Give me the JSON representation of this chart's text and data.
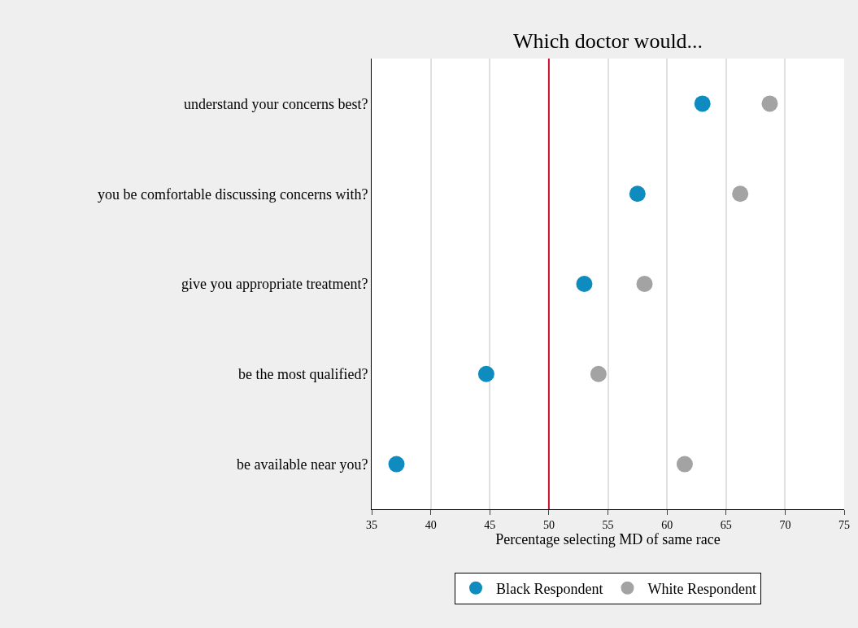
{
  "chart_data": {
    "type": "scatter",
    "title": "Which doctor would...",
    "xlabel": "Percentage selecting MD of same race",
    "orientation": "horizontal",
    "categories": [
      "understand your concerns best?",
      "you be comfortable discussing concerns with?",
      "give you appropriate treatment?",
      "be the most qualified?",
      "be available near you?"
    ],
    "series": [
      {
        "name": "Black Respondent",
        "color": "#0f8cbf",
        "values": [
          63.0,
          57.5,
          53.0,
          44.7,
          37.1
        ]
      },
      {
        "name": "White Respondent",
        "color": "#a3a3a3",
        "values": [
          68.7,
          66.2,
          58.1,
          54.2,
          61.5
        ]
      }
    ],
    "xlim": [
      35,
      75
    ],
    "xticks": [
      35,
      40,
      45,
      50,
      55,
      60,
      65,
      70,
      75
    ],
    "grid": "x",
    "legend": "bottom",
    "marker": "circle",
    "ref_lines": [
      {
        "axis": "x",
        "value": 50,
        "color": "#c8102e"
      }
    ]
  }
}
